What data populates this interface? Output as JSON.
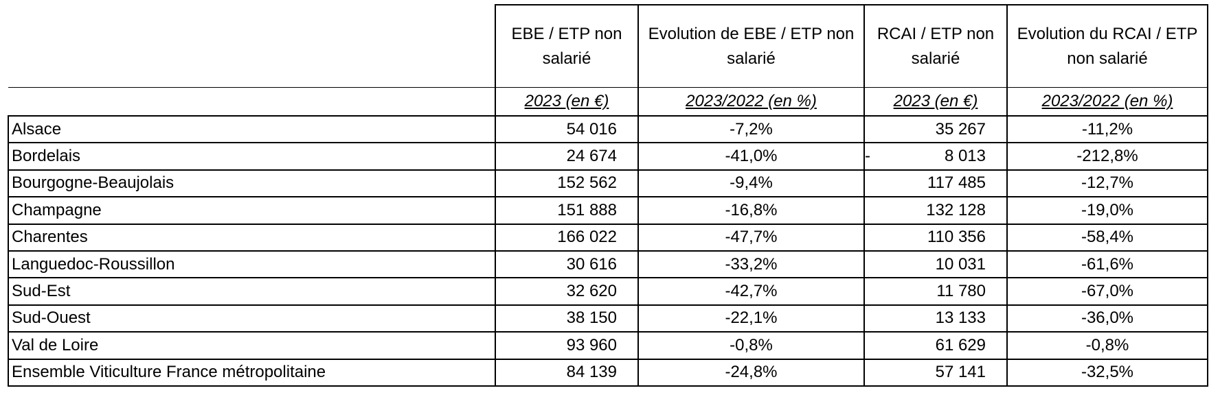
{
  "table": {
    "headers": [
      "EBE / ETP non salarié",
      "Evolution de EBE / ETP non salarié",
      "RCAI / ETP non salarié",
      "Evolution du RCAI / ETP non salarié"
    ],
    "subheaders": [
      "2023 (en €)",
      "2023/2022 (en %)",
      "2023 (en €)",
      "2023/2022 (en %)"
    ],
    "rows": [
      {
        "label": "Alsace",
        "cells": [
          "54 016",
          "-7,2%",
          "35 267",
          "-11,2%"
        ]
      },
      {
        "label": "Bordelais",
        "cells": [
          "24 674",
          "-41,0%",
          {
            "sign": "-",
            "amount": "8 013"
          },
          "-212,8%"
        ]
      },
      {
        "label": "Bourgogne-Beaujolais",
        "cells": [
          "152 562",
          "-9,4%",
          "117 485",
          "-12,7%"
        ]
      },
      {
        "label": "Champagne",
        "cells": [
          "151 888",
          "-16,8%",
          "132 128",
          "-19,0%"
        ]
      },
      {
        "label": "Charentes",
        "cells": [
          "166 022",
          "-47,7%",
          "110 356",
          "-58,4%"
        ]
      },
      {
        "label": "Languedoc-Roussillon",
        "cells": [
          "30 616",
          "-33,2%",
          "10 031",
          "-61,6%"
        ]
      },
      {
        "label": "Sud-Est",
        "cells": [
          "32 620",
          "-42,7%",
          "11 780",
          "-67,0%"
        ]
      },
      {
        "label": "Sud-Ouest",
        "cells": [
          "38 150",
          "-22,1%",
          "13 133",
          "-36,0%"
        ]
      },
      {
        "label": "Val de Loire",
        "cells": [
          "93 960",
          "-0,8%",
          "61 629",
          "-0,8%"
        ]
      },
      {
        "label": "Ensemble Viticulture France métropolitaine",
        "cells": [
          "84 139",
          "-24,8%",
          "57 141",
          "-32,5%"
        ]
      }
    ]
  }
}
